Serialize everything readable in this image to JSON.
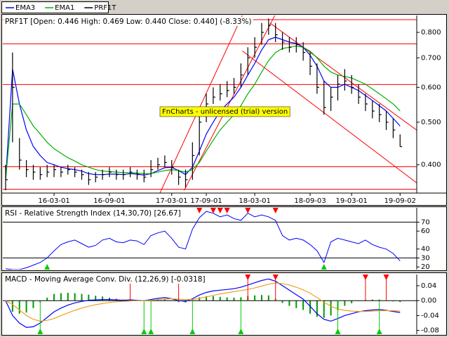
{
  "chart_data": [
    {
      "type": "ohlc",
      "title": "PRF1T [Open: 0.446  High: 0.469  Low: 0.440  Close: 0.440] (-8.33%)",
      "annotations": [
        "FnCharts - unlicensed (trial) version"
      ],
      "log_scale": true,
      "xlim": [
        0,
        59
      ],
      "ylim": [
        0.345,
        0.874
      ],
      "xticks": [
        {
          "value": 7,
          "label": "16-03-01"
        },
        {
          "value": 15,
          "label": "16-09-01"
        },
        {
          "value": 24,
          "label": "17-03-01"
        },
        {
          "value": 29,
          "label": "17-09-01"
        },
        {
          "value": 36,
          "label": "18-03-01"
        },
        {
          "value": 44,
          "label": "18-09-03"
        },
        {
          "value": 50,
          "label": "19-03-01"
        },
        {
          "value": 57,
          "label": "19-09-02"
        }
      ],
      "yticks": [
        {
          "value": 0.8,
          "label": "0.800"
        },
        {
          "value": 0.7,
          "label": "0.700"
        },
        {
          "value": 0.6,
          "label": "0.600"
        },
        {
          "value": 0.5,
          "label": "0.500"
        },
        {
          "value": 0.4,
          "label": "0.400"
        }
      ],
      "hlines": [
        0.855,
        0.753,
        0.609,
        0.396,
        0.352
      ],
      "trendlines": [
        {
          "x": [
            22.3,
            34.2
          ],
          "y": [
            0.345,
            0.874
          ]
        },
        {
          "x": [
            25.8,
            38.9
          ],
          "y": [
            0.35,
            0.874
          ]
        },
        {
          "x": [
            38.2,
            60
          ],
          "y": [
            0.84,
            0.472
          ]
        },
        {
          "x": [
            34.2,
            60
          ],
          "y": [
            0.726,
            0.358
          ]
        }
      ],
      "line_color": "#ff0000",
      "series": [
        {
          "name": "EMA3",
          "color": "#0000ff",
          "values": [
            0.37,
            0.66,
            0.55,
            0.48,
            0.44,
            0.42,
            0.405,
            0.4,
            0.395,
            0.392,
            0.39,
            0.387,
            0.382,
            0.38,
            0.38,
            0.381,
            0.381,
            0.38,
            0.382,
            0.381,
            0.379,
            0.382,
            0.388,
            0.394,
            0.395,
            0.388,
            0.38,
            0.395,
            0.43,
            0.47,
            0.5,
            0.53,
            0.55,
            0.57,
            0.6,
            0.64,
            0.68,
            0.73,
            0.77,
            0.78,
            0.77,
            0.76,
            0.755,
            0.74,
            0.71,
            0.67,
            0.62,
            0.6,
            0.6,
            0.61,
            0.6,
            0.59,
            0.575,
            0.56,
            0.545,
            0.53,
            0.51,
            0.49
          ]
        },
        {
          "name": "EMA1",
          "color": "#00b000",
          "values": [
            0.37,
            0.55,
            0.55,
            0.52,
            0.49,
            0.47,
            0.45,
            0.435,
            0.425,
            0.415,
            0.408,
            0.4,
            0.395,
            0.39,
            0.387,
            0.386,
            0.385,
            0.384,
            0.384,
            0.383,
            0.382,
            0.382,
            0.385,
            0.388,
            0.39,
            0.388,
            0.385,
            0.39,
            0.405,
            0.43,
            0.455,
            0.48,
            0.5,
            0.52,
            0.545,
            0.58,
            0.61,
            0.65,
            0.69,
            0.72,
            0.735,
            0.74,
            0.745,
            0.74,
            0.725,
            0.7,
            0.67,
            0.65,
            0.64,
            0.635,
            0.63,
            0.62,
            0.61,
            0.595,
            0.58,
            0.565,
            0.55,
            0.53
          ]
        },
        {
          "name": "PRF1T",
          "color": "#000000",
          "high": [
            0.4,
            0.72,
            0.46,
            0.41,
            0.4,
            0.395,
            0.4,
            0.4,
            0.395,
            0.4,
            0.395,
            0.39,
            0.385,
            0.385,
            0.39,
            0.395,
            0.39,
            0.39,
            0.395,
            0.39,
            0.39,
            0.41,
            0.415,
            0.42,
            0.41,
            0.39,
            0.39,
            0.45,
            0.53,
            0.58,
            0.6,
            0.61,
            0.62,
            0.63,
            0.68,
            0.74,
            0.78,
            0.84,
            0.86,
            0.84,
            0.8,
            0.78,
            0.78,
            0.76,
            0.72,
            0.68,
            0.62,
            0.6,
            0.64,
            0.66,
            0.64,
            0.61,
            0.58,
            0.56,
            0.55,
            0.53,
            0.51,
            0.469
          ],
          "low": [
            0.35,
            0.45,
            0.39,
            0.375,
            0.37,
            0.37,
            0.375,
            0.375,
            0.375,
            0.38,
            0.375,
            0.37,
            0.36,
            0.365,
            0.37,
            0.375,
            0.37,
            0.37,
            0.375,
            0.37,
            0.365,
            0.375,
            0.39,
            0.395,
            0.38,
            0.36,
            0.355,
            0.37,
            0.42,
            0.5,
            0.55,
            0.56,
            0.57,
            0.58,
            0.6,
            0.64,
            0.7,
            0.75,
            0.79,
            0.76,
            0.73,
            0.72,
            0.72,
            0.69,
            0.64,
            0.58,
            0.52,
            0.53,
            0.56,
            0.59,
            0.58,
            0.55,
            0.53,
            0.51,
            0.5,
            0.48,
            0.46,
            0.44
          ],
          "close": [
            0.37,
            0.6,
            0.41,
            0.39,
            0.385,
            0.38,
            0.385,
            0.39,
            0.385,
            0.39,
            0.385,
            0.38,
            0.37,
            0.375,
            0.38,
            0.385,
            0.38,
            0.38,
            0.385,
            0.38,
            0.375,
            0.39,
            0.4,
            0.405,
            0.395,
            0.375,
            0.37,
            0.42,
            0.5,
            0.55,
            0.57,
            0.58,
            0.59,
            0.6,
            0.64,
            0.7,
            0.74,
            0.8,
            0.83,
            0.79,
            0.76,
            0.74,
            0.75,
            0.72,
            0.67,
            0.6,
            0.54,
            0.57,
            0.61,
            0.62,
            0.6,
            0.57,
            0.55,
            0.53,
            0.52,
            0.5,
            0.48,
            0.44
          ]
        }
      ]
    },
    {
      "type": "line",
      "title": "RSI - Relative Strength Index (14,30,70) [26.67]",
      "xlim": [
        0,
        59
      ],
      "ylim": [
        17,
        86
      ],
      "yticks": [
        70,
        60,
        40,
        30,
        20
      ],
      "levels": [
        30,
        70
      ],
      "color": "#0000ff",
      "values": [
        18,
        17,
        17,
        19,
        22,
        25,
        30,
        38,
        45,
        48,
        50,
        46,
        42,
        44,
        50,
        52,
        48,
        47,
        50,
        49,
        45,
        55,
        58,
        60,
        52,
        42,
        40,
        62,
        75,
        82,
        80,
        76,
        78,
        74,
        72,
        80,
        76,
        78,
        76,
        72,
        55,
        50,
        52,
        50,
        45,
        38,
        25,
        48,
        52,
        50,
        48,
        46,
        50,
        45,
        42,
        40,
        35,
        26.67
      ],
      "sell_signals": [
        28,
        30,
        31,
        32,
        35,
        39
      ],
      "buy_signals": [
        6,
        46
      ]
    },
    {
      "type": "macd",
      "title": "MACD - Moving Average Conv. Div. (12,26,9) [-0.0318]",
      "xlim": [
        0,
        59
      ],
      "ylim": [
        -0.09,
        0.07
      ],
      "yticks": [
        0.04,
        {
          "value": 0,
          "label": "0.00"
        },
        -0.04,
        -0.08
      ],
      "series": [
        {
          "color": "#0000ff",
          "values": [
            0,
            -0.04,
            -0.06,
            -0.072,
            -0.07,
            -0.06,
            -0.045,
            -0.03,
            -0.02,
            -0.012,
            -0.006,
            -0.002,
            0.001,
            0.002,
            0.003,
            0.003,
            0.002,
            0.001,
            0.002,
            0.001,
            0,
            0.003,
            0.006,
            0.008,
            0.005,
            0,
            -0.002,
            0.005,
            0.015,
            0.022,
            0.026,
            0.028,
            0.03,
            0.032,
            0.036,
            0.042,
            0.048,
            0.054,
            0.058,
            0.052,
            0.04,
            0.028,
            0.016,
            0.004,
            -0.015,
            -0.035,
            -0.05,
            -0.055,
            -0.048,
            -0.04,
            -0.035,
            -0.03,
            -0.027,
            -0.025,
            -0.024,
            -0.026,
            -0.029,
            -0.0318
          ]
        },
        {
          "color": "#f0a020",
          "values": [
            0,
            -0.01,
            -0.025,
            -0.04,
            -0.05,
            -0.055,
            -0.053,
            -0.048,
            -0.04,
            -0.033,
            -0.026,
            -0.02,
            -0.015,
            -0.011,
            -0.008,
            -0.005,
            -0.003,
            -0.002,
            -0.001,
            0,
            0,
            0.001,
            0.002,
            0.004,
            0.005,
            0.004,
            0.003,
            0.003,
            0.006,
            0.01,
            0.014,
            0.018,
            0.021,
            0.024,
            0.027,
            0.03,
            0.034,
            0.039,
            0.044,
            0.047,
            0.046,
            0.042,
            0.036,
            0.029,
            0.02,
            0.008,
            -0.004,
            -0.015,
            -0.022,
            -0.026,
            -0.028,
            -0.029,
            -0.029,
            -0.028,
            -0.027,
            -0.027,
            -0.027,
            -0.028
          ]
        }
      ],
      "histogram": {
        "color": "#009900",
        "values": [
          0,
          -0.03,
          -0.035,
          -0.032,
          -0.02,
          -0.005,
          0.008,
          0.018,
          0.02,
          0.021,
          0.02,
          0.018,
          0.016,
          0.013,
          0.011,
          0.008,
          0.005,
          0.003,
          0.003,
          0.001,
          0,
          0.002,
          0.004,
          0.004,
          0,
          -0.004,
          -0.005,
          0.002,
          0.009,
          0.012,
          0.012,
          0.01,
          0.009,
          0.008,
          0.009,
          0.012,
          0.014,
          0.015,
          0.014,
          0.005,
          -0.006,
          -0.014,
          -0.02,
          -0.025,
          -0.035,
          -0.043,
          -0.046,
          -0.04,
          -0.026,
          -0.014,
          -0.007,
          -0.001,
          0.002,
          0.003,
          0.003,
          0.001,
          -0.002,
          -0.0038
        ]
      },
      "sell_signals": [
        18,
        25,
        35,
        39,
        52,
        55
      ],
      "buy_signals": [
        5,
        20,
        21,
        27,
        34,
        48,
        54
      ]
    }
  ]
}
